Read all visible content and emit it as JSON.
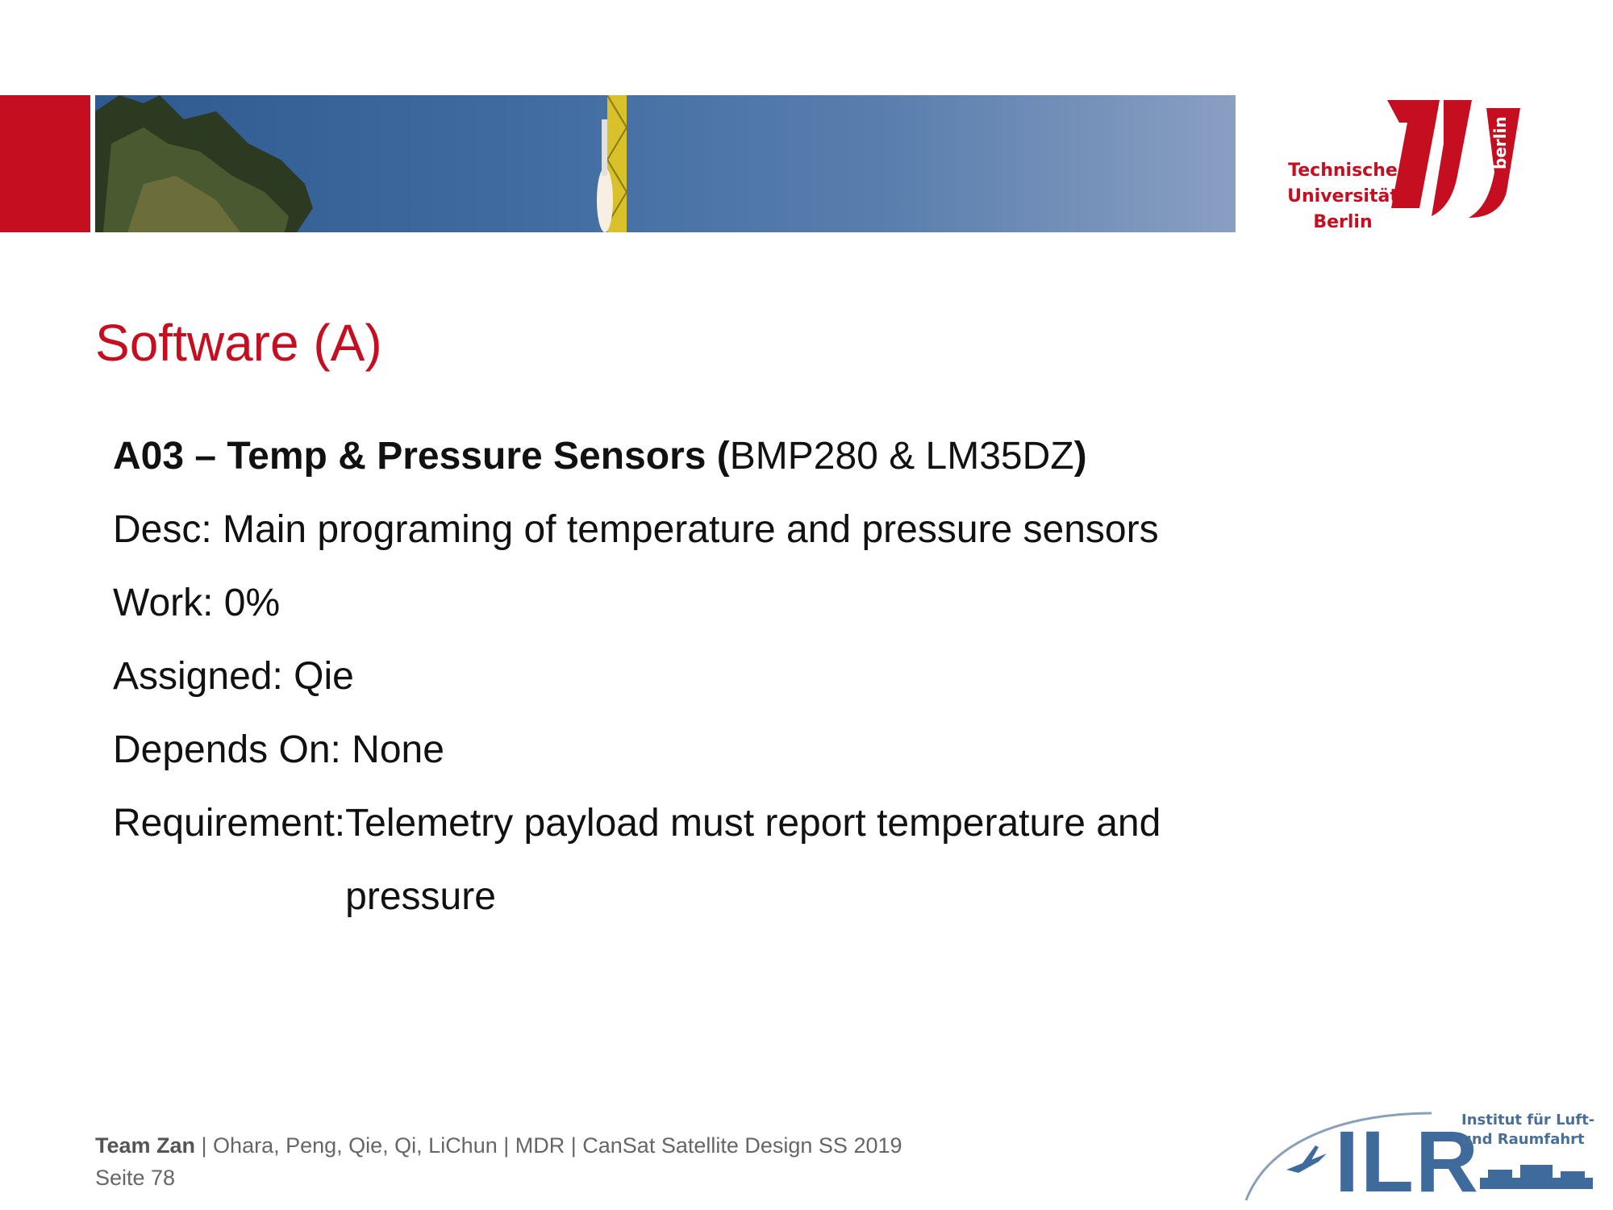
{
  "header": {
    "logo_lines": [
      "Technische",
      "Universität",
      "Berlin"
    ],
    "logo_vertical": "berlin"
  },
  "title": "Software (A)",
  "item": {
    "heading_bold": "A03 – Temp & Pressure Sensors (",
    "heading_normal": "BMP280 & LM35DZ",
    "heading_close": ")",
    "desc": "Desc: Main programing of temperature and pressure sensors",
    "work": "Work: 0%",
    "assigned": "Assigned: Qie",
    "depends": "Depends On: None",
    "requirement_label": "Requirement: ",
    "requirement_value": "Telemetry payload must report temperature and pressure"
  },
  "footer": {
    "team": "Team Zan",
    "details": " | Ohara, Peng, Qie, Qi, LiChun | MDR | CanSat Satellite Design SS 2019",
    "page": "Seite 78"
  },
  "ilr": {
    "letters": "ILR",
    "text_line1": "Institut für Luft-",
    "text_line2": "und Raumfahrt"
  }
}
